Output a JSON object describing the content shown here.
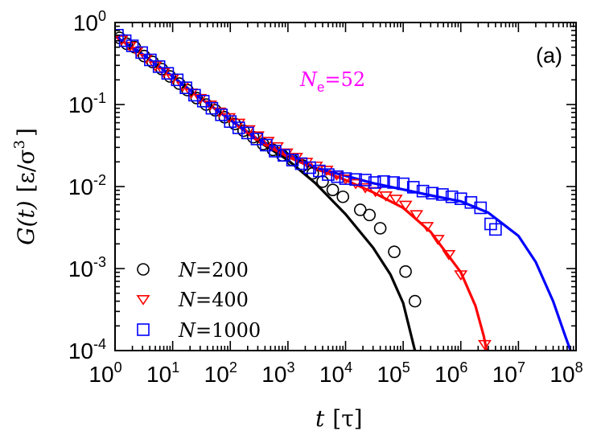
{
  "chart_data": {
    "type": "scatter",
    "title": "",
    "panel_label": "(a)",
    "annotation": {
      "text": "N",
      "subscript": "e",
      "equals": "=",
      "value": "52"
    },
    "xlabel": {
      "var": "t",
      "unit": "[τ]"
    },
    "ylabel": {
      "var": "G(t)",
      "unit": "[ε/σ",
      "unit_exp": "3",
      "unit_close": "]"
    },
    "xscale": "log",
    "yscale": "log",
    "xlim": [
      1,
      100000000
    ],
    "ylim": [
      0.0001,
      1
    ],
    "x_ticks": [
      {
        "value": 1,
        "base": "10",
        "exp": "0"
      },
      {
        "value": 10,
        "base": "10",
        "exp": "1"
      },
      {
        "value": 100,
        "base": "10",
        "exp": "2"
      },
      {
        "value": 1000,
        "base": "10",
        "exp": "3"
      },
      {
        "value": 10000,
        "base": "10",
        "exp": "4"
      },
      {
        "value": 100000,
        "base": "10",
        "exp": "5"
      },
      {
        "value": 1000000,
        "base": "10",
        "exp": "6"
      },
      {
        "value": 10000000,
        "base": "10",
        "exp": "7"
      },
      {
        "value": 100000000,
        "base": "10",
        "exp": "8"
      }
    ],
    "y_ticks": [
      {
        "value": 1,
        "base": "10",
        "exp": "0"
      },
      {
        "value": 0.1,
        "base": "10",
        "exp": "-1"
      },
      {
        "value": 0.01,
        "base": "10",
        "exp": "-2"
      },
      {
        "value": 0.001,
        "base": "10",
        "exp": "-3"
      },
      {
        "value": 0.0001,
        "base": "10",
        "exp": "-4"
      }
    ],
    "legend_position": "bottom-left",
    "series": [
      {
        "name": "N=200",
        "label_var": "N",
        "label_eq": "=",
        "label_val": "200",
        "marker": "circle",
        "color": "#000000",
        "line_color": "#000000",
        "points": [
          [
            1.2,
            0.65
          ],
          [
            1.6,
            0.55
          ],
          [
            2.2,
            0.5
          ],
          [
            3.2,
            0.39
          ],
          [
            4.5,
            0.33
          ],
          [
            6.5,
            0.27
          ],
          [
            9,
            0.22
          ],
          [
            13,
            0.18
          ],
          [
            18,
            0.15
          ],
          [
            26,
            0.12
          ],
          [
            38,
            0.1
          ],
          [
            55,
            0.085
          ],
          [
            80,
            0.07
          ],
          [
            120,
            0.058
          ],
          [
            170,
            0.048
          ],
          [
            250,
            0.04
          ],
          [
            370,
            0.033
          ],
          [
            550,
            0.028
          ],
          [
            800,
            0.024
          ],
          [
            1200,
            0.021
          ],
          [
            1800,
            0.018
          ],
          [
            2700,
            0.0145
          ],
          [
            4000,
            0.0115
          ],
          [
            6000,
            0.0091
          ],
          [
            9000,
            0.0075
          ],
          [
            18000,
            0.0052
          ],
          [
            26000,
            0.0045
          ],
          [
            40000,
            0.0031
          ],
          [
            70000,
            0.0016
          ],
          [
            110000,
            0.00092
          ],
          [
            160000,
            0.0004
          ]
        ],
        "curve": [
          [
            1,
            0.68
          ],
          [
            3,
            0.41
          ],
          [
            10,
            0.22
          ],
          [
            30,
            0.12
          ],
          [
            100,
            0.065
          ],
          [
            300,
            0.036
          ],
          [
            1000,
            0.021
          ],
          [
            3000,
            0.011
          ],
          [
            10000,
            0.0046
          ],
          [
            30000,
            0.0018
          ],
          [
            60000,
            0.00085
          ],
          [
            100000,
            0.00038
          ],
          [
            130000,
            0.00018
          ],
          [
            160000,
            0.0001
          ]
        ]
      },
      {
        "name": "N=400",
        "label_var": "N",
        "label_eq": "=",
        "label_val": "400",
        "marker": "triangle-down",
        "color": "#ff0000",
        "line_color": "#ff0000",
        "points": [
          [
            1.3,
            0.62
          ],
          [
            1.8,
            0.52
          ],
          [
            2.4,
            0.45
          ],
          [
            3.5,
            0.37
          ],
          [
            5,
            0.3
          ],
          [
            7,
            0.25
          ],
          [
            10,
            0.21
          ],
          [
            15,
            0.17
          ],
          [
            21,
            0.14
          ],
          [
            30,
            0.12
          ],
          [
            45,
            0.1
          ],
          [
            65,
            0.082
          ],
          [
            95,
            0.07
          ],
          [
            140,
            0.06
          ],
          [
            210,
            0.05
          ],
          [
            300,
            0.042
          ],
          [
            450,
            0.036
          ],
          [
            650,
            0.031
          ],
          [
            950,
            0.026
          ],
          [
            1400,
            0.023
          ],
          [
            2100,
            0.02
          ],
          [
            3100,
            0.018
          ],
          [
            4700,
            0.016
          ],
          [
            7000,
            0.014
          ],
          [
            10000,
            0.0125
          ],
          [
            15000,
            0.011
          ],
          [
            22000,
            0.0098
          ],
          [
            33000,
            0.0088
          ],
          [
            50000,
            0.0078
          ],
          [
            75000,
            0.0071
          ],
          [
            110000,
            0.006
          ],
          [
            170000,
            0.0046
          ],
          [
            260000,
            0.0033
          ],
          [
            400000,
            0.0023
          ],
          [
            620000,
            0.0015
          ],
          [
            1000000,
            0.00085
          ],
          [
            2600000,
            0.00012
          ]
        ],
        "curve": [
          [
            1,
            0.68
          ],
          [
            3,
            0.41
          ],
          [
            10,
            0.22
          ],
          [
            30,
            0.12
          ],
          [
            100,
            0.065
          ],
          [
            300,
            0.036
          ],
          [
            1000,
            0.023
          ],
          [
            3000,
            0.0165
          ],
          [
            10000,
            0.012
          ],
          [
            30000,
            0.0085
          ],
          [
            100000,
            0.0055
          ],
          [
            300000,
            0.0028
          ],
          [
            1000000,
            0.0009
          ],
          [
            1800000,
            0.00035
          ],
          [
            2500000,
            0.00015
          ],
          [
            2800000,
            0.0001
          ]
        ]
      },
      {
        "name": "N=1000",
        "label_var": "N",
        "label_eq": "=",
        "label_val": "1000",
        "marker": "square",
        "color": "#0000ff",
        "line_color": "#0000ff",
        "points": [
          [
            1.1,
            0.7
          ],
          [
            1.5,
            0.6
          ],
          [
            2,
            0.52
          ],
          [
            2.9,
            0.43
          ],
          [
            4.1,
            0.35
          ],
          [
            5.8,
            0.29
          ],
          [
            8.2,
            0.24
          ],
          [
            12,
            0.2
          ],
          [
            17,
            0.16
          ],
          [
            24,
            0.13
          ],
          [
            34,
            0.11
          ],
          [
            48,
            0.09
          ],
          [
            70,
            0.075
          ],
          [
            100,
            0.062
          ],
          [
            140,
            0.052
          ],
          [
            200,
            0.045
          ],
          [
            290,
            0.038
          ],
          [
            420,
            0.032
          ],
          [
            600,
            0.027
          ],
          [
            850,
            0.024
          ],
          [
            1200,
            0.021
          ],
          [
            1700,
            0.019
          ],
          [
            2400,
            0.017
          ],
          [
            3500,
            0.0155
          ],
          [
            5000,
            0.014
          ],
          [
            7200,
            0.0132
          ],
          [
            10000,
            0.0125
          ],
          [
            15000,
            0.0122
          ],
          [
            22000,
            0.012
          ],
          [
            32000,
            0.0112
          ],
          [
            46000,
            0.0115
          ],
          [
            68000,
            0.0112
          ],
          [
            100000,
            0.0108
          ],
          [
            150000,
            0.0098
          ],
          [
            220000,
            0.0088
          ],
          [
            320000,
            0.0083
          ],
          [
            480000,
            0.008
          ],
          [
            700000,
            0.0075
          ],
          [
            1000000,
            0.0071
          ],
          [
            1500000,
            0.0064
          ],
          [
            2200000,
            0.0055
          ],
          [
            3300000,
            0.0035
          ],
          [
            4000000,
            0.003
          ]
        ],
        "curve": [
          [
            1,
            0.68
          ],
          [
            3,
            0.41
          ],
          [
            10,
            0.22
          ],
          [
            30,
            0.12
          ],
          [
            100,
            0.065
          ],
          [
            300,
            0.038
          ],
          [
            1000,
            0.025
          ],
          [
            3000,
            0.017
          ],
          [
            10000,
            0.0135
          ],
          [
            30000,
            0.011
          ],
          [
            100000,
            0.0092
          ],
          [
            300000,
            0.0078
          ],
          [
            1000000,
            0.0066
          ],
          [
            3000000,
            0.0048
          ],
          [
            10000000,
            0.0025
          ],
          [
            20000000,
            0.0012
          ],
          [
            40000000,
            0.0004
          ],
          [
            65000000,
            0.00015
          ],
          [
            80000000,
            0.0001
          ]
        ]
      }
    ]
  }
}
